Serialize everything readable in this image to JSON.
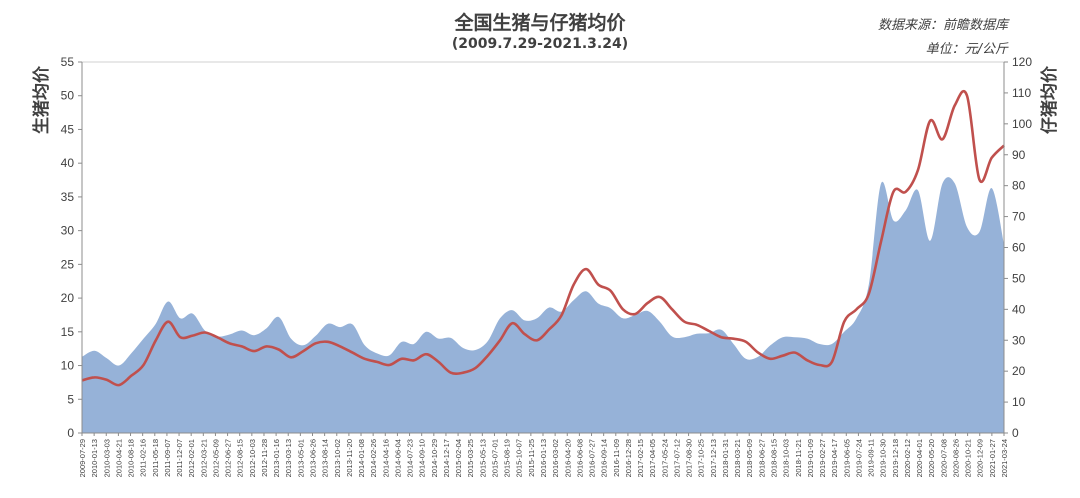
{
  "header": {
    "title": "全国生猪与仔猪均价",
    "subtitle": "(2009.7.29-2021.3.24)",
    "source": "数据来源：前瞻数据库",
    "unit": "单位：元/公斤"
  },
  "colors": {
    "area_fill": "#96b2d8",
    "line": "#c0504d",
    "axis": "#8c8c8c"
  },
  "chart_data": {
    "type": "area",
    "grid": false,
    "legend": "none",
    "y_left": {
      "label": "生猪均价",
      "range": [
        0,
        55
      ],
      "ticks": [
        "0",
        "5",
        "10",
        "15",
        "20",
        "25",
        "30",
        "35",
        "40",
        "45",
        "50",
        "55"
      ]
    },
    "y_right": {
      "label": "仔猪均价",
      "range": [
        0,
        120
      ],
      "ticks": [
        "0",
        "10",
        "20",
        "30",
        "40",
        "50",
        "60",
        "70",
        "80",
        "90",
        "100",
        "110",
        "120"
      ]
    },
    "x_tick_labels": [
      "2009-07-29",
      "2010-01-13",
      "2010-03-03",
      "2010-04-21",
      "2010-08-18",
      "2011-02-16",
      "2011-05-18",
      "2011-09-07",
      "2011-12-07",
      "2012-02-01",
      "2012-03-21",
      "2012-05-09",
      "2012-06-27",
      "2012-08-15",
      "2012-10-03",
      "2012-11-28",
      "2013-01-16",
      "2013-03-13",
      "2013-05-01",
      "2013-06-26",
      "2013-08-14",
      "2013-10-02",
      "2013-11-20",
      "2014-01-08",
      "2014-02-26",
      "2014-04-16",
      "2014-06-04",
      "2014-07-23",
      "2014-09-10",
      "2014-10-29",
      "2014-12-17",
      "2015-02-04",
      "2015-03-25",
      "2015-05-13",
      "2015-07-01",
      "2015-08-19",
      "2015-10-07",
      "2015-11-25",
      "2016-01-13",
      "2016-03-02",
      "2016-04-20",
      "2016-06-08",
      "2016-07-27",
      "2016-09-14",
      "2016-11-09",
      "2016-12-28",
      "2017-02-15",
      "2017-04-05",
      "2017-05-24",
      "2017-07-12",
      "2017-08-30",
      "2017-10-25",
      "2017-12-13",
      "2018-01-31",
      "2018-03-21",
      "2018-05-09",
      "2018-06-27",
      "2018-08-15",
      "2018-10-03",
      "2018-11-21",
      "2019-01-09",
      "2019-02-27",
      "2019-04-17",
      "2019-06-05",
      "2019-07-24",
      "2019-09-11",
      "2019-10-30",
      "2019-12-18",
      "2020-02-12",
      "2020-04-01",
      "2020-05-20",
      "2020-07-08",
      "2020-08-26",
      "2020-10-21",
      "2020-12-09",
      "2021-01-27",
      "2021-03-24"
    ],
    "series": [
      {
        "name": "生猪均价",
        "axis": "left",
        "style": "area",
        "values": [
          11.3,
          12.2,
          11.1,
          10.0,
          11.8,
          14.0,
          16.2,
          19.5,
          17.0,
          17.7,
          15.2,
          14.3,
          14.6,
          15.2,
          14.5,
          15.5,
          17.2,
          14.0,
          13.0,
          14.4,
          16.2,
          15.7,
          16.1,
          13.0,
          11.8,
          11.5,
          13.5,
          13.2,
          15.0,
          14.0,
          14.1,
          12.6,
          12.3,
          13.6,
          17.0,
          18.2,
          16.7,
          17.0,
          18.6,
          18.0,
          19.7,
          21.0,
          19.2,
          18.5,
          17.0,
          17.5,
          18.1,
          16.5,
          14.3,
          14.2,
          14.7,
          14.8,
          15.3,
          13.2,
          11.0,
          11.3,
          13.0,
          14.2,
          14.2,
          14.0,
          13.2,
          13.2,
          15.0,
          17.0,
          22.0,
          37.0,
          31.5,
          33.0,
          36.0,
          28.5,
          37.0,
          37.0,
          30.5,
          29.8,
          36.3,
          28.0
        ]
      },
      {
        "name": "仔猪均价",
        "axis": "right",
        "style": "line",
        "values": [
          17.0,
          18.0,
          17.2,
          15.5,
          18.5,
          22.0,
          30.0,
          36.0,
          31.0,
          31.5,
          32.5,
          31.0,
          29.0,
          28.0,
          26.5,
          28.0,
          27.0,
          24.5,
          26.5,
          29.0,
          29.5,
          28.0,
          26.0,
          24.0,
          23.0,
          22.0,
          24.0,
          23.5,
          25.5,
          23.0,
          19.5,
          19.5,
          21.0,
          25.0,
          30.0,
          35.5,
          32.0,
          30.0,
          33.5,
          38.0,
          48.0,
          53.0,
          48.0,
          46.0,
          40.0,
          38.5,
          42.0,
          44.0,
          40.0,
          36.0,
          35.0,
          33.0,
          31.0,
          30.5,
          29.5,
          26.0,
          24.0,
          25.0,
          26.0,
          23.5,
          22.0,
          23.0,
          36.0,
          40.0,
          45.0,
          62.0,
          78.0,
          78.0,
          85.0,
          101.0,
          95.0,
          106.0,
          109.0,
          82.0,
          89.0,
          93.0
        ]
      }
    ]
  }
}
